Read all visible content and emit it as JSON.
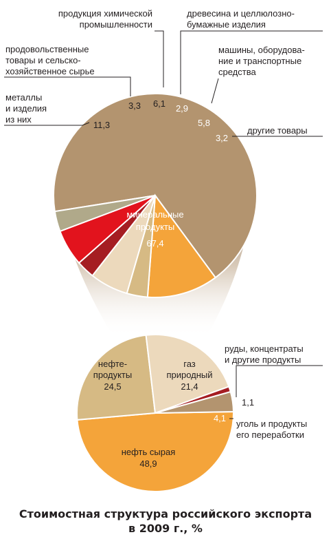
{
  "chart_data": [
    {
      "type": "pie",
      "slices": [
        {
          "label": "минеральные продукты",
          "value": 67.4,
          "value_text": "67,4",
          "color": "#b3946f"
        },
        {
          "label": "металлы и изделия из них",
          "value": 11.3,
          "value_text": "11,3",
          "color": "#f4a43a"
        },
        {
          "label": "продовольственные товары и сельско-хозяйственное сырье",
          "value": 3.3,
          "value_text": "3,3",
          "color": "#d6ba84"
        },
        {
          "label": "продукция химической промышленности",
          "value": 6.1,
          "value_text": "6,1",
          "color": "#ecd9bc"
        },
        {
          "label": "древесина и целлюлозно-бумажные изделия",
          "value": 2.9,
          "value_text": "2,9",
          "color": "#a51d22"
        },
        {
          "label": "машины, оборудова-ние и транспортные средства",
          "value": 5.8,
          "value_text": "5,8",
          "color": "#e2131d"
        },
        {
          "label": "другие товары",
          "value": 3.2,
          "value_text": "3,2",
          "color": "#b0a98a"
        }
      ]
    },
    {
      "type": "pie",
      "slices": [
        {
          "label": "нефть сырая",
          "value": 48.9,
          "value_text": "48,9",
          "color": "#f4a43a"
        },
        {
          "label": "нефте-продукты",
          "value": 24.5,
          "value_text": "24,5",
          "color": "#d6ba84"
        },
        {
          "label": "газ природный",
          "value": 21.4,
          "value_text": "21,4",
          "color": "#ecd9bc"
        },
        {
          "label": "руды, концентраты и другие продукты",
          "value": 1.1,
          "value_text": "1,1",
          "color": "#a51d22"
        },
        {
          "label": "уголь и продукты его переработки",
          "value": 4.1,
          "value_text": "4,1",
          "color": "#b3946f"
        }
      ]
    }
  ],
  "labels": {
    "chemicals_l1": "продукция химической",
    "chemicals_l2": "промышленности",
    "wood_l1": "древесина и целлюлозно-",
    "wood_l2": "бумажные изделия",
    "machines_l1": "машины, оборудова-",
    "machines_l2": "ние и транспортные",
    "machines_l3": "средства",
    "food_l1": "продовольственные",
    "food_l2": "товары и сельско-",
    "food_l3": "хозяйственное сырье",
    "metals_l1": "металлы",
    "metals_l2": "и изделия",
    "metals_l3": "из них",
    "other": "другие товары",
    "mineral_l1": "минеральные",
    "mineral_l2": "продукты",
    "ores_l1": "руды, концентраты",
    "ores_l2": "и другие продукты",
    "coal_l1": "уголь и продукты",
    "coal_l2": "его переработки",
    "oilprod_l1": "нефте-",
    "oilprod_l2": "продукты",
    "gas_l1": "газ",
    "gas_l2": "природный",
    "crude": "нефть сырая"
  },
  "title_line1": "Стоимостная структура российского экспорта",
  "title_line2": "в 2009 г., %"
}
